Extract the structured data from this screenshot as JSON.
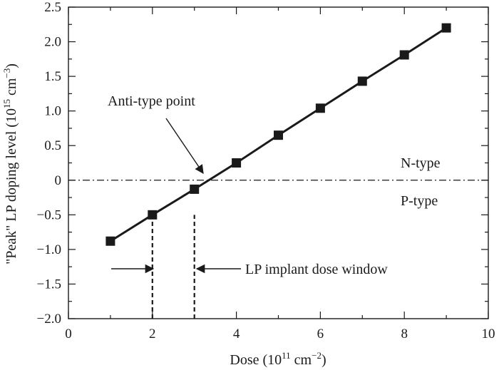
{
  "chart_data": {
    "type": "line",
    "title": "",
    "xlabel_parts": {
      "pre": "Dose (10",
      "exp1": "11",
      "mid": " cm",
      "exp2": "−2",
      "post": ")"
    },
    "ylabel_parts": {
      "pre": "\"Peak\" LP doping level (10",
      "exp1": "15",
      "mid": " cm",
      "exp2": "−3",
      "post": ")"
    },
    "xlim": [
      0,
      10
    ],
    "ylim": [
      -2.0,
      2.5
    ],
    "x_ticks": [
      0,
      2,
      4,
      6,
      8,
      10
    ],
    "x_tick_labels": [
      "0",
      "2",
      "4",
      "6",
      "8",
      "10"
    ],
    "y_ticks": [
      -2.0,
      -1.5,
      -1.0,
      -0.5,
      0,
      0.5,
      1.0,
      1.5,
      2.0,
      2.5
    ],
    "y_tick_labels": [
      "−2.0",
      "−1.5",
      "−1.0",
      "−0.5",
      "0",
      "0.5",
      "1.0",
      "1.5",
      "2.0",
      "2.5"
    ],
    "grid": false,
    "series": [
      {
        "marker": "square",
        "color": "#1a1a1a",
        "x": [
          1,
          2,
          3,
          4,
          5,
          6,
          7,
          8,
          9
        ],
        "y": [
          -0.88,
          -0.5,
          -0.13,
          0.25,
          0.65,
          1.04,
          1.43,
          1.81,
          2.2
        ]
      }
    ],
    "reference_line": {
      "y": 0,
      "style": "dash-dot"
    },
    "window_lines": {
      "x": [
        2,
        3
      ],
      "y_top": -0.5,
      "style": "dashed"
    },
    "annotations": {
      "anti_type_point": "Anti-type point",
      "n_type": "N-type",
      "p_type": "P-type",
      "dose_window": "LP implant dose window"
    }
  }
}
